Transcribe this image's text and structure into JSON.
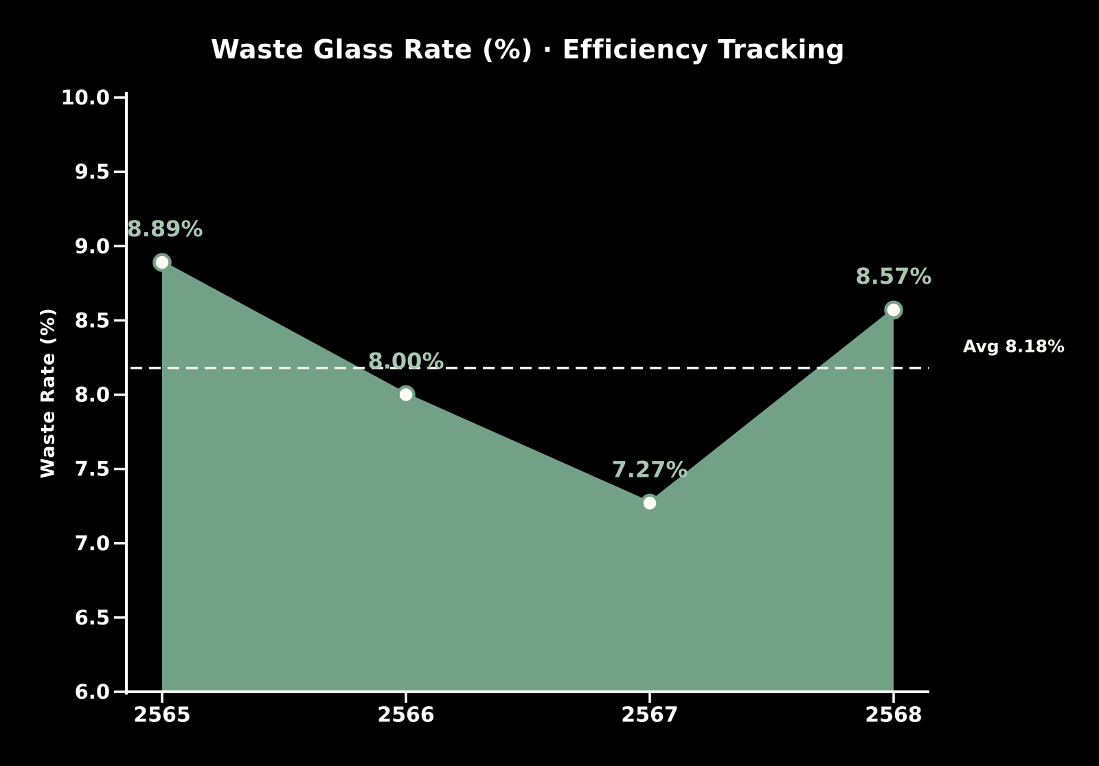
{
  "window": {
    "background": "#000000"
  },
  "chart_data": {
    "type": "area",
    "title": "Waste Glass Rate (%) · Efficiency Tracking",
    "xlabel": "",
    "ylabel": "Waste Rate (%)",
    "categories": [
      "2565",
      "2566",
      "2567",
      "2568"
    ],
    "values": [
      8.89,
      8.0,
      7.27,
      8.57
    ],
    "point_labels": [
      "8.89%",
      "8.00%",
      "7.27%",
      "8.57%"
    ],
    "average": 8.18,
    "average_label": "Avg 8.18%",
    "ylim": [
      6.0,
      10.0
    ],
    "yticks": [
      "10.0",
      "9.5",
      "9.0",
      "8.5",
      "8.0",
      "7.5",
      "7.0",
      "6.5",
      "6.0"
    ],
    "grid": false,
    "legend": "none",
    "series_name": "Waste Glass Rate"
  },
  "colors": {
    "background": "#000000",
    "area_fill": "#72a188",
    "trend_line": "#72a188",
    "marker_face": "#fffdf4",
    "marker_edge": "#72a188",
    "point_label": "#a8c7b2",
    "axis": "#ffffff",
    "tick_text": "#ffffff",
    "avg_line": "#f2f0e6",
    "avg_text": "#fdfcf3"
  }
}
